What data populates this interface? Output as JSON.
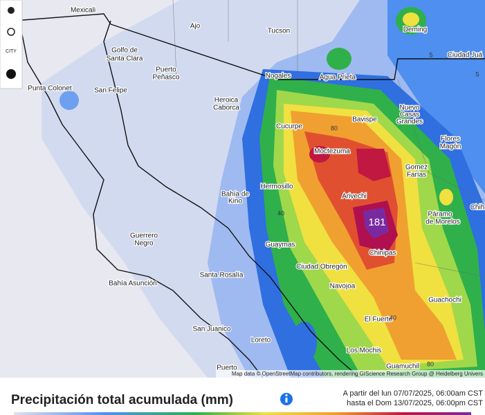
{
  "map": {
    "cities": [
      "Mexicali",
      "Ajo",
      "Tucson",
      "Deming",
      "Ciudad Juá",
      "Golfo de",
      "Santa Clara",
      "Puerto",
      "Peñasco",
      "Nogales",
      "Agua Prieta",
      "Punta Colonet",
      "San Felipe",
      "Heroica",
      "Caborca",
      "Nuevo",
      "Casas",
      "Grandes",
      "Cucurpe",
      "Bavispe",
      "Flores",
      "Magón",
      "Moctezuma",
      "Gomez",
      "Farías",
      "Hermosillo",
      "Bahía de",
      "Kino",
      "Arivechi",
      "Chih",
      "Páramo",
      "de Morelos",
      "Guerrero",
      "Negro",
      "Guaymas",
      "Ciudad Obregón",
      "Chinipas",
      "Santa Rosalía",
      "Navojoa",
      "Bahía Asunción",
      "Guachochi",
      "El Fuerte",
      "San Juanico",
      "Loreto",
      "Los Mochis",
      "Guamuchil",
      "Puerto"
    ],
    "contour_labels": [
      "5",
      "5",
      "80",
      "40",
      "40",
      "80"
    ],
    "max_label": "181",
    "attribution": "Map data © OpenStreetMap contributors, rendering GIScience Research Group @ Heidelberg Univers"
  },
  "toolbar": {
    "city": "CITY"
  },
  "legend": {
    "title": "Precipitación total acumulada (mm)",
    "period_from": "A partir del lun 07/07/2025, 06:00am CST",
    "period_to": "hasta el Dom 13/07/2025, 06:00pm CST"
  }
}
